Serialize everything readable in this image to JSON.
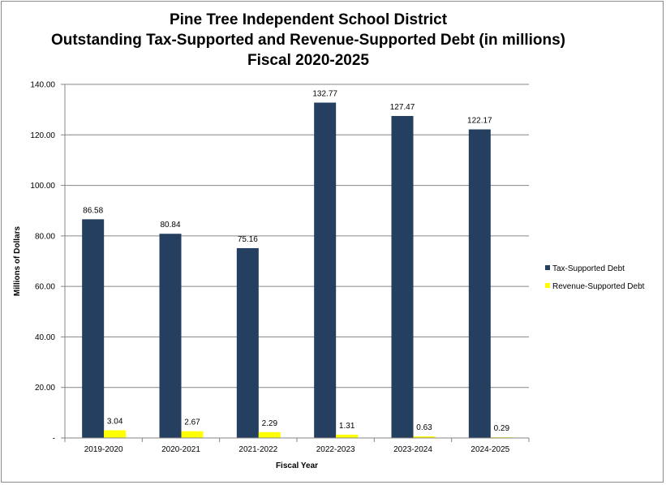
{
  "chart_data": {
    "type": "bar",
    "title": [
      "Pine Tree Independent School District",
      "Outstanding Tax-Supported and Revenue-Supported Debt (in millions)",
      "Fiscal 2020-2025"
    ],
    "xlabel": "Fiscal Year",
    "ylabel": "Millions of Dollars",
    "ylim": [
      0,
      140
    ],
    "yticks": [
      "-",
      "20.00",
      "40.00",
      "60.00",
      "80.00",
      "100.00",
      "120.00",
      "140.00"
    ],
    "grid": true,
    "legend_position": "right",
    "categories": [
      "2019-2020",
      "2020-2021",
      "2021-2022",
      "2022-2023",
      "2023-2024",
      "2024-2025"
    ],
    "series": [
      {
        "name": "Tax-Supported Debt",
        "color": "#243f60",
        "values": [
          86.58,
          80.84,
          75.16,
          132.77,
          127.47,
          122.17
        ],
        "labels": [
          "86.58",
          "80.84",
          "75.16",
          "132.77",
          "127.47",
          "122.17"
        ]
      },
      {
        "name": "Revenue-Supported Debt",
        "color": "#ffff00",
        "values": [
          3.04,
          2.67,
          2.29,
          1.31,
          0.63,
          0.29
        ],
        "labels": [
          "3.04",
          "2.67",
          "2.29",
          "1.31",
          "0.63",
          "0.29"
        ]
      }
    ]
  }
}
